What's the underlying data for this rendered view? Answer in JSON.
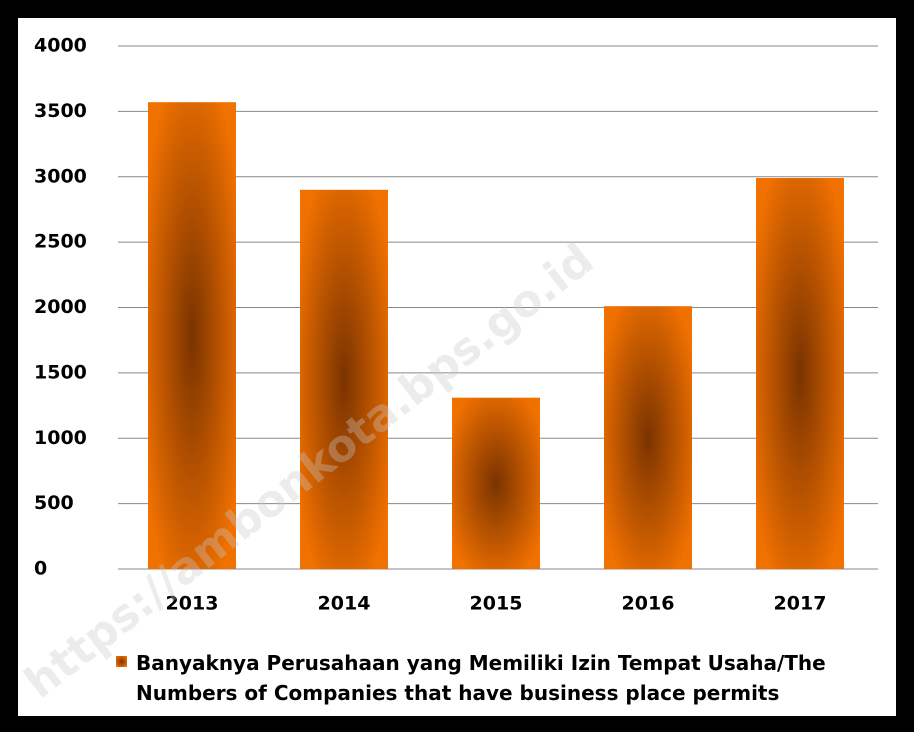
{
  "chart_data": {
    "type": "bar",
    "categories": [
      "2013",
      "2014",
      "2015",
      "2016",
      "2017"
    ],
    "series": [
      {
        "name": "Banyaknya Perusahaan yang Memiliki Izin Tempat Usaha/The Numbers of Companies that have business place permits",
        "color": "#f07000",
        "values": [
          3570,
          2900,
          1310,
          2010,
          2990
        ]
      }
    ],
    "ylim": [
      0,
      4000
    ],
    "yticks": [
      0,
      500,
      1000,
      1500,
      2000,
      2500,
      3000,
      3500,
      4000
    ],
    "grid": true,
    "legend": "bottom",
    "watermark": "https://ambonkota.bps.go.id"
  }
}
